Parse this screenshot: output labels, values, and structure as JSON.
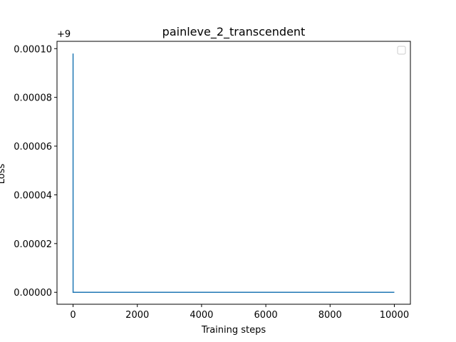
{
  "chart_data": {
    "type": "line",
    "title": "painleve_2_transcendent",
    "xlabel": "Training steps",
    "ylabel": "Loss",
    "y_offset_label": "+9",
    "xlim": [
      -500,
      10500
    ],
    "ylim": [
      -4.9e-06,
      0.000103
    ],
    "xticks": [
      0,
      2000,
      4000,
      6000,
      8000,
      10000
    ],
    "xtick_labels": [
      "0",
      "2000",
      "4000",
      "6000",
      "8000",
      "10000"
    ],
    "yticks": [
      0.0,
      2e-05,
      4e-05,
      6e-05,
      8e-05,
      0.0001
    ],
    "ytick_labels": [
      "0.00000",
      "0.00002",
      "0.00004",
      "0.00006",
      "0.00008",
      "0.00010"
    ],
    "grid": false,
    "legend": "top-right",
    "series": [
      {
        "color": "#1f77b4",
        "x": [
          0,
          1,
          10000
        ],
        "y": [
          9.8e-05,
          0.0,
          0.0
        ]
      }
    ]
  }
}
